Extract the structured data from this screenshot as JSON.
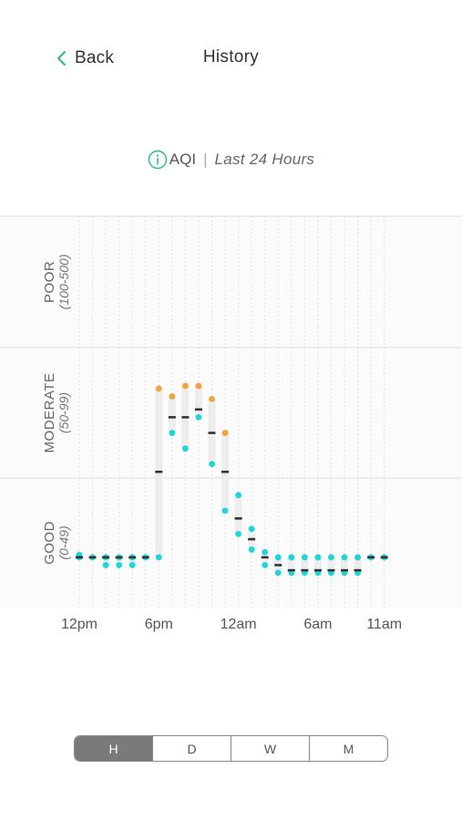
{
  "nav": {
    "back_label": "Back",
    "title": "History"
  },
  "header": {
    "metric": "AQI",
    "separator": "|",
    "range": "Last 24 Hours"
  },
  "segments": [
    {
      "label": "H",
      "active": true
    },
    {
      "label": "D",
      "active": false
    },
    {
      "label": "W",
      "active": false
    },
    {
      "label": "M",
      "active": false
    }
  ],
  "colors": {
    "accent": "#2ab893",
    "max": "#f0a33c",
    "min": "#1cd6d8",
    "avg": "#333333"
  },
  "chart_data": {
    "type": "range-dot",
    "bands": [
      {
        "name": "POOR",
        "range_label": "(100-500)",
        "from": 100,
        "to": 500
      },
      {
        "name": "MODERATE",
        "range_label": "(50-99)",
        "from": 50,
        "to": 100
      },
      {
        "name": "GOOD",
        "range_label": "(0-49)",
        "from": 0,
        "to": 50
      }
    ],
    "x_tick_labels": [
      {
        "hour_index": 0,
        "label": "12pm"
      },
      {
        "hour_index": 6,
        "label": "6pm"
      },
      {
        "hour_index": 12,
        "label": "12am"
      },
      {
        "hour_index": 18,
        "label": "6am"
      },
      {
        "hour_index": 23,
        "label": "11am"
      }
    ],
    "hours": [
      {
        "max": 7,
        "avg": 6,
        "min": 6
      },
      {
        "max": 6,
        "avg": 6,
        "min": 6
      },
      {
        "max": 6,
        "avg": 6,
        "min": 3
      },
      {
        "max": 6,
        "avg": 6,
        "min": 3
      },
      {
        "max": 6,
        "avg": 6,
        "min": 3
      },
      {
        "max": 6,
        "avg": 6,
        "min": 6
      },
      {
        "max": 71,
        "avg": 39,
        "min": 6
      },
      {
        "max": 68,
        "avg": 60,
        "min": 54
      },
      {
        "max": 72,
        "avg": 60,
        "min": 48
      },
      {
        "max": 72,
        "avg": 63,
        "min": 60
      },
      {
        "max": 67,
        "avg": 54,
        "min": 42
      },
      {
        "max": 54,
        "avg": 39,
        "min": 24
      },
      {
        "max": 30,
        "avg": 21,
        "min": 15
      },
      {
        "max": 17,
        "avg": 13,
        "min": 9
      },
      {
        "max": 8,
        "avg": 6,
        "min": 3
      },
      {
        "max": 6,
        "avg": 3,
        "min": 0
      },
      {
        "max": 6,
        "avg": 1,
        "min": 0
      },
      {
        "max": 6,
        "avg": 1,
        "min": 0
      },
      {
        "max": 6,
        "avg": 1,
        "min": 0
      },
      {
        "max": 6,
        "avg": 1,
        "min": 0
      },
      {
        "max": 6,
        "avg": 1,
        "min": 0
      },
      {
        "max": 6,
        "avg": 1,
        "min": 0
      },
      {
        "max": 6,
        "avg": 6,
        "min": 6
      },
      {
        "max": 6,
        "avg": 6,
        "min": 6
      }
    ]
  }
}
